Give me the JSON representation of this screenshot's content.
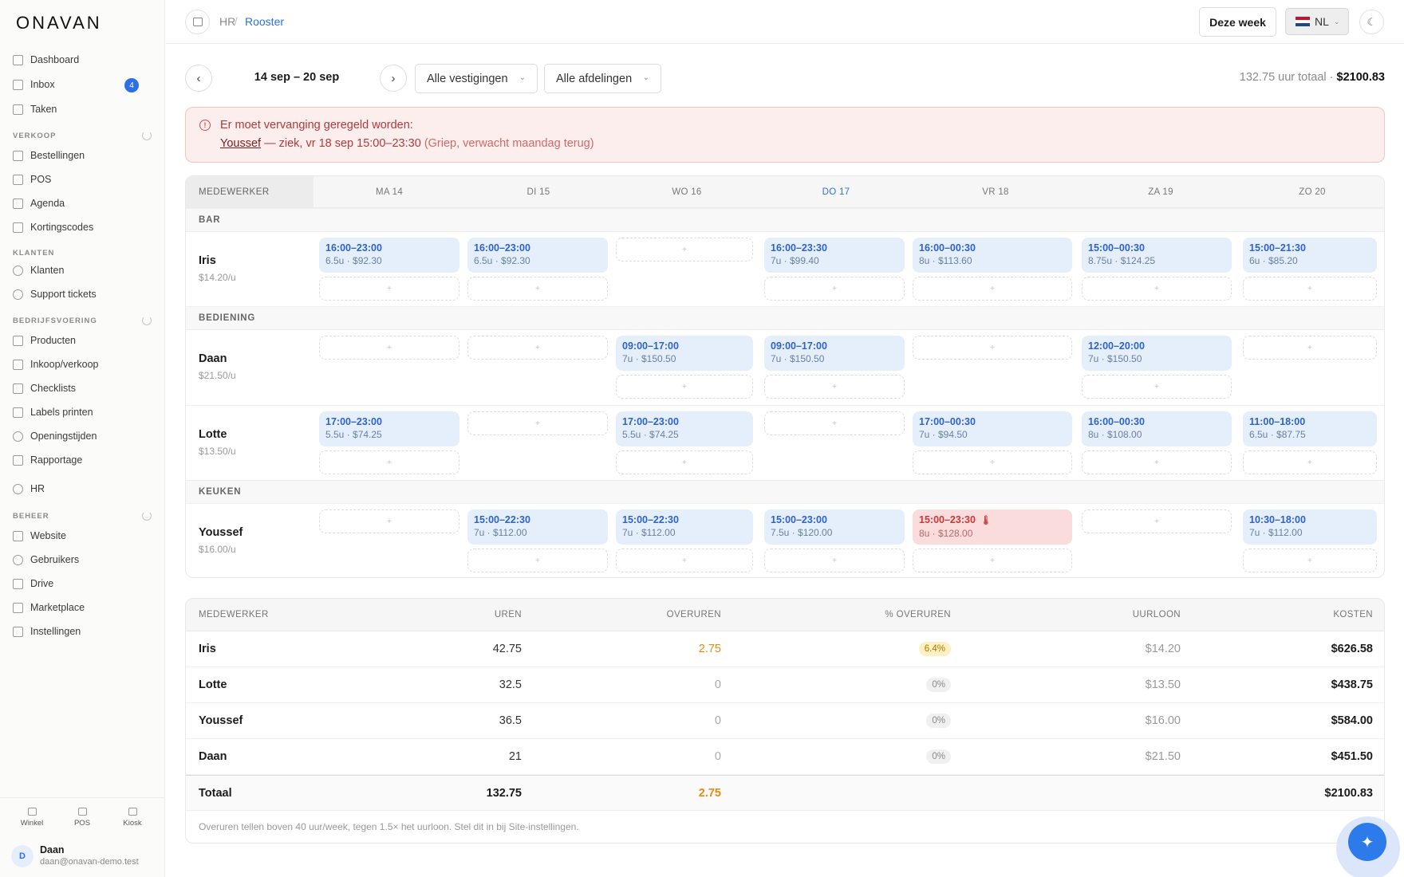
{
  "app": {
    "logo": "ONAVAN"
  },
  "sidebar": {
    "items": [
      {
        "label": "Dashboard"
      },
      {
        "label": "Inbox",
        "badge": "4"
      },
      {
        "label": "Taken"
      },
      {
        "label": "Bestellingen"
      },
      {
        "label": "POS"
      },
      {
        "label": "Agenda"
      },
      {
        "label": "Kortingscodes"
      },
      {
        "label": "Klanten"
      },
      {
        "label": "Support tickets"
      },
      {
        "label": "Producten"
      },
      {
        "label": "Inkoop/verkoop"
      },
      {
        "label": "Checklists"
      },
      {
        "label": "Labels printen"
      },
      {
        "label": "Openingstijden"
      },
      {
        "label": "Rapportage"
      },
      {
        "label": "HR"
      },
      {
        "label": "Website"
      },
      {
        "label": "Gebruikers"
      },
      {
        "label": "Drive"
      },
      {
        "label": "Marketplace"
      },
      {
        "label": "Instellingen"
      }
    ],
    "sections": [
      "VERKOOP",
      "KLANTEN",
      "BEDRIJFSVOERING",
      "BEHEER"
    ],
    "bottom_tabs": [
      "Winkel",
      "POS",
      "Kiosk"
    ],
    "user": {
      "initial": "D",
      "name": "Daan",
      "email": "daan@onavan-demo.test"
    }
  },
  "topbar": {
    "breadcrumb_parent": "HR",
    "breadcrumb_sep": "/",
    "breadcrumb_current": "Rooster",
    "week_button": "Deze week",
    "language": "NL",
    "accent": "#2d6fe6"
  },
  "controls": {
    "prev": "‹",
    "next": "›",
    "week_range": "14 sep – 20 sep",
    "location_filter": "Alle vestigingen",
    "department_filter": "Alle afdelingen",
    "total_hours": "132.75 uur totaal",
    "total_sep": " · ",
    "total_cost": "$2100.83"
  },
  "alert": {
    "title": "Er moet vervanging geregeld worden:",
    "name": "Youssef",
    "detail": " — ziek, vr 18 sep 15:00–23:30 ",
    "note": "(Griep, verwacht maandag terug)"
  },
  "schedule": {
    "employee_header": "MEDEWERKER",
    "days": [
      "MA 14",
      "DI 15",
      "WO 16",
      "DO 17",
      "VR 18",
      "ZA 19",
      "ZO 20"
    ],
    "sections": [
      "BAR",
      "BEDIENING",
      "KEUKEN"
    ],
    "employees": [
      {
        "name": "Iris",
        "rate": "$14.20/u",
        "shifts": [
          {
            "time": "16:00–23:00",
            "sub": "6.5u · $92.30"
          },
          {
            "time": "16:00–23:00",
            "sub": "6.5u · $92.30"
          },
          null,
          {
            "time": "16:00–23:30",
            "sub": "7u · $99.40"
          },
          {
            "time": "16:00–00:30",
            "sub": "8u · $113.60"
          },
          {
            "time": "15:00–00:30",
            "sub": "8.75u · $124.25"
          },
          {
            "time": "15:00–21:30",
            "sub": "6u · $85.20"
          }
        ]
      },
      {
        "name": "Daan",
        "rate": "$21.50/u",
        "shifts": [
          null,
          null,
          {
            "time": "09:00–17:00",
            "sub": "7u · $150.50"
          },
          {
            "time": "09:00–17:00",
            "sub": "7u · $150.50"
          },
          null,
          {
            "time": "12:00–20:00",
            "sub": "7u · $150.50"
          },
          null
        ]
      },
      {
        "name": "Lotte",
        "rate": "$13.50/u",
        "shifts": [
          {
            "time": "17:00–23:00",
            "sub": "5.5u · $74.25"
          },
          null,
          {
            "time": "17:00–23:00",
            "sub": "5.5u · $74.25"
          },
          null,
          {
            "time": "17:00–00:30",
            "sub": "7u · $94.50"
          },
          {
            "time": "16:00–00:30",
            "sub": "8u · $108.00"
          },
          {
            "time": "11:00–18:00",
            "sub": "6.5u · $87.75"
          }
        ]
      },
      {
        "name": "Youssef",
        "rate": "$16.00/u",
        "shifts": [
          null,
          {
            "time": "15:00–22:30",
            "sub": "7u · $112.00"
          },
          {
            "time": "15:00–22:30",
            "sub": "7u · $112.00"
          },
          {
            "time": "15:00–23:00",
            "sub": "7.5u · $120.00"
          },
          {
            "time": "15:00–23:30",
            "sub": "8u · $128.00",
            "sick": true
          },
          null,
          {
            "time": "10:30–18:00",
            "sub": "7u · $112.00"
          }
        ]
      }
    ],
    "add_symbol": "+",
    "sick_icon": "thermometer-icon"
  },
  "summary": {
    "headers": [
      "MEDEWERKER",
      "UREN",
      "OVERUREN",
      "% OVERUREN",
      "UURLOON",
      "KOSTEN"
    ],
    "rows": [
      {
        "name": "Iris",
        "hours": "42.75",
        "overtime": "2.75",
        "pct": "6.4%",
        "rate": "$14.20",
        "cost": "$626.58"
      },
      {
        "name": "Lotte",
        "hours": "32.5",
        "overtime": "0",
        "pct": "0%",
        "rate": "$13.50",
        "cost": "$438.75"
      },
      {
        "name": "Youssef",
        "hours": "36.5",
        "overtime": "0",
        "pct": "0%",
        "rate": "$16.00",
        "cost": "$584.00"
      },
      {
        "name": "Daan",
        "hours": "21",
        "overtime": "0",
        "pct": "0%",
        "rate": "$21.50",
        "cost": "$451.50"
      }
    ],
    "total": {
      "label": "Totaal",
      "hours": "132.75",
      "overtime": "2.75",
      "cost": "$2100.83"
    },
    "footnote": "Overuren tellen boven 40 uur/week, tegen 1.5× het uurloon. Stel dit in bij Site-instellingen."
  }
}
